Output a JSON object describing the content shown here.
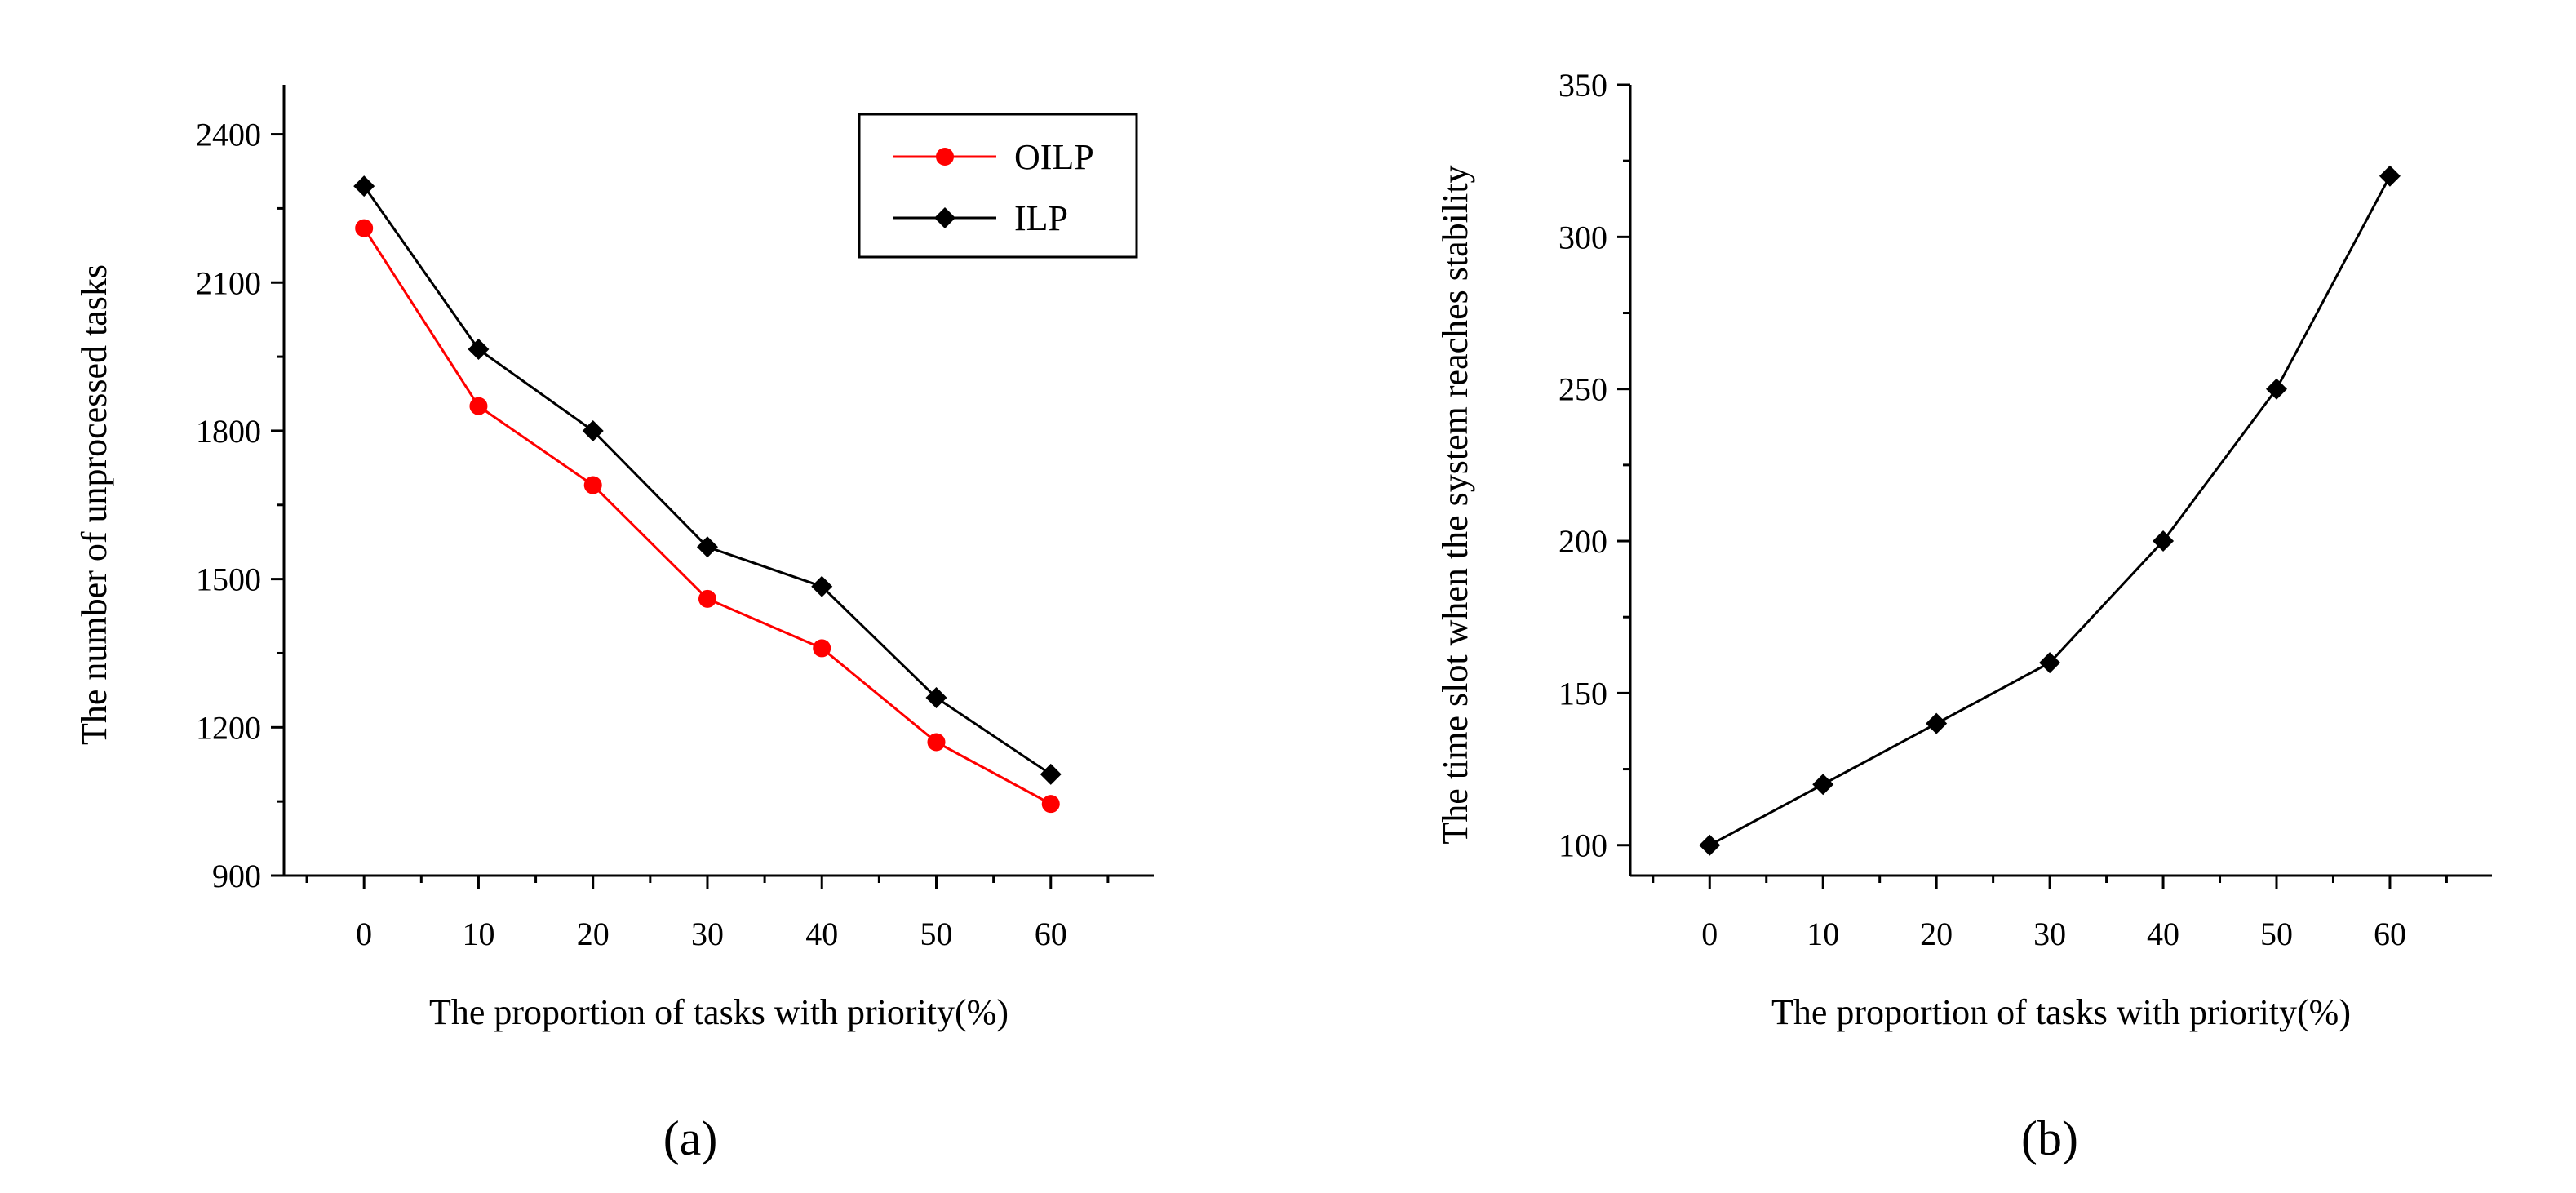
{
  "chart_data": [
    {
      "type": "line",
      "panel_label": "(a)",
      "xlabel": "The proportion of tasks with priority(%)",
      "ylabel": "The number of unprocessed tasks",
      "x": [
        0,
        10,
        20,
        30,
        40,
        50,
        60
      ],
      "xticks": [
        0,
        10,
        20,
        30,
        40,
        50,
        60
      ],
      "yticks": [
        900,
        1200,
        1500,
        1800,
        2100,
        2400
      ],
      "xlim": [
        -7,
        69
      ],
      "ylim": [
        900,
        2500
      ],
      "grid": false,
      "legend_position": "top-right",
      "series": [
        {
          "name": "OILP",
          "color": "#ff0000",
          "marker": "circle",
          "values": [
            2210,
            1850,
            1690,
            1460,
            1360,
            1170,
            1045
          ]
        },
        {
          "name": "ILP",
          "color": "#000000",
          "marker": "diamond",
          "values": [
            2295,
            1965,
            1800,
            1565,
            1485,
            1260,
            1105
          ]
        }
      ]
    },
    {
      "type": "line",
      "panel_label": "(b)",
      "xlabel": "The proportion of tasks with priority(%)",
      "ylabel": "The time slot when the system reaches stability",
      "x": [
        0,
        10,
        20,
        30,
        40,
        50,
        60
      ],
      "xticks": [
        0,
        10,
        20,
        30,
        40,
        50,
        60
      ],
      "yticks": [
        100,
        150,
        200,
        250,
        300,
        350
      ],
      "xlim": [
        -7,
        69
      ],
      "ylim": [
        90,
        350
      ],
      "grid": false,
      "legend_position": "none",
      "series": [
        {
          "name": "",
          "color": "#000000",
          "marker": "diamond",
          "values": [
            100,
            120,
            140,
            160,
            200,
            250,
            320
          ]
        }
      ]
    }
  ]
}
